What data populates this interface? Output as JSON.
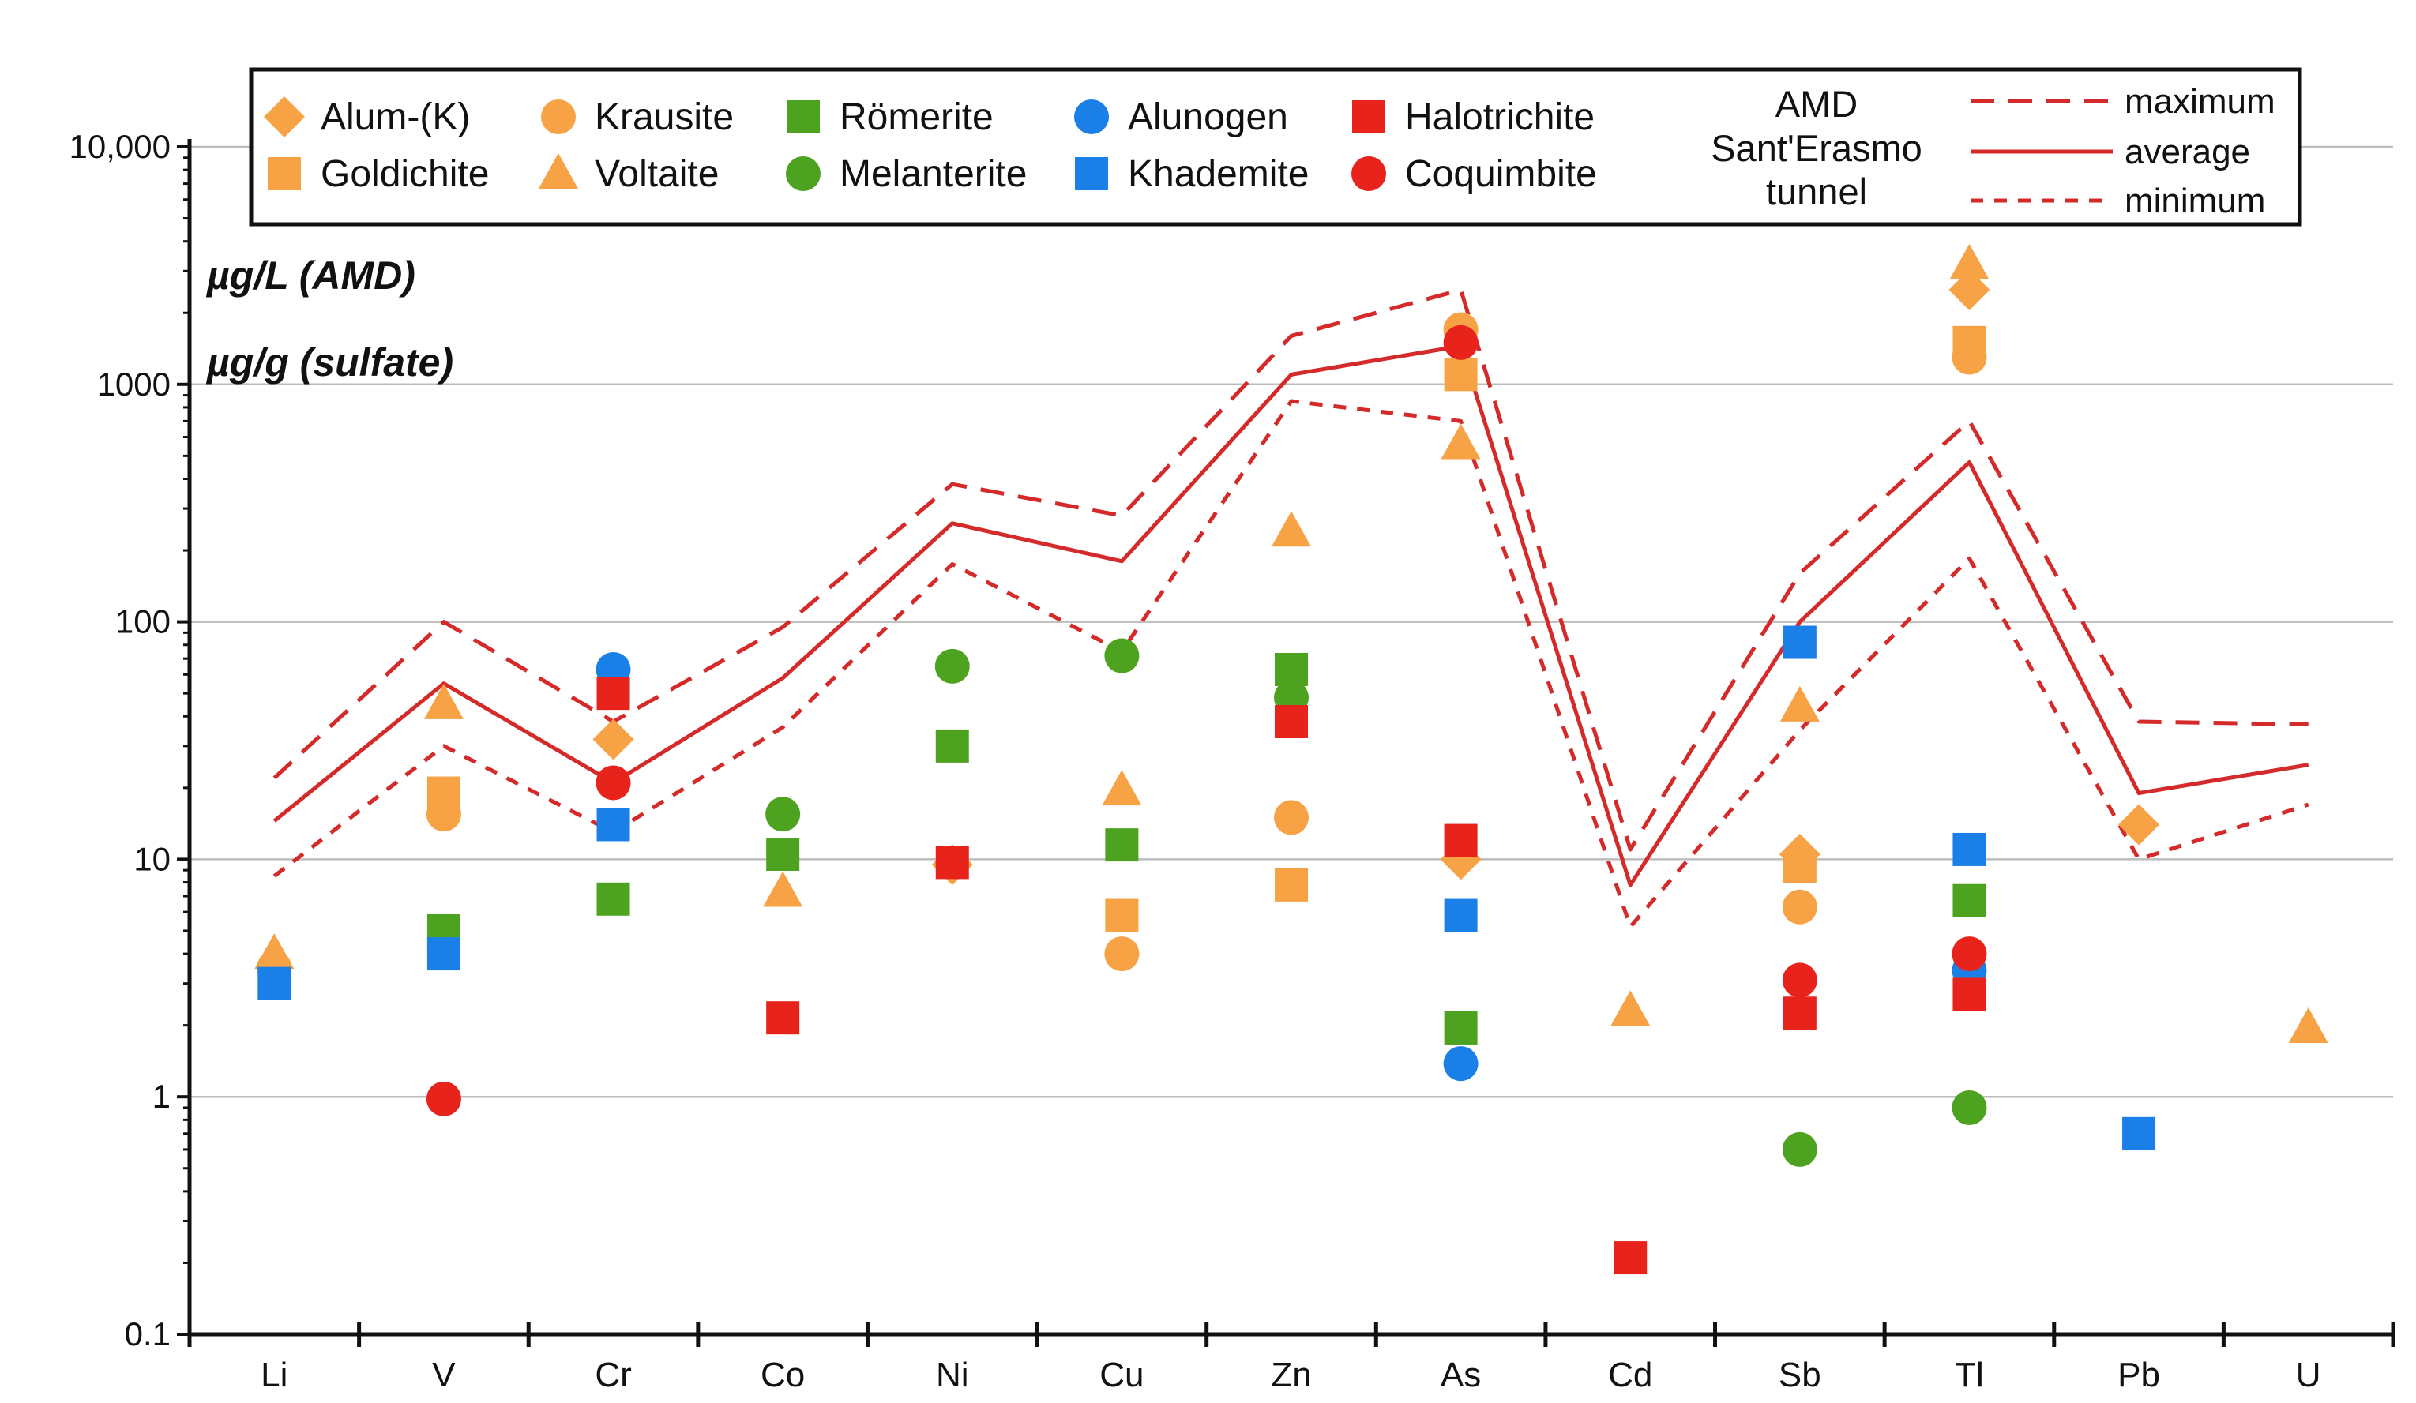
{
  "chart_data": {
    "type": "scatter",
    "title": "",
    "xlabel": "",
    "ylabel": "",
    "yscale": "log",
    "ylim": [
      0.1,
      10000
    ],
    "y_ticks": [
      {
        "value": 0.1,
        "label": "0.1"
      },
      {
        "value": 1,
        "label": "1"
      },
      {
        "value": 10,
        "label": "10"
      },
      {
        "value": 100,
        "label": "100"
      },
      {
        "value": 1000,
        "label": "1000"
      },
      {
        "value": 10000,
        "label": "10,000"
      }
    ],
    "unit_labels": [
      "µg/L (AMD)",
      "µg/g (sulfate)"
    ],
    "categories": [
      "Li",
      "V",
      "Cr",
      "Co",
      "Ni",
      "Cu",
      "Zn",
      "As",
      "Cd",
      "Sb",
      "Tl",
      "Pb",
      "U"
    ],
    "series": [
      {
        "name": "Alum-(K)",
        "color": "#f6a245",
        "marker": "diamond",
        "points": [
          {
            "x": "Cr",
            "y": 32
          },
          {
            "x": "Ni",
            "y": 9.5
          },
          {
            "x": "As",
            "y": 10
          },
          {
            "x": "Sb",
            "y": 10.5
          },
          {
            "x": "Tl",
            "y": 2500
          },
          {
            "x": "Pb",
            "y": 14
          }
        ]
      },
      {
        "name": "Goldichite",
        "color": "#f6a245",
        "marker": "square",
        "points": [
          {
            "x": "V",
            "y": 19
          },
          {
            "x": "Cu",
            "y": 5.8
          },
          {
            "x": "Zn",
            "y": 7.8
          },
          {
            "x": "As",
            "y": 1100
          },
          {
            "x": "Sb",
            "y": 9.3
          },
          {
            "x": "Tl",
            "y": 1500
          }
        ]
      },
      {
        "name": "Krausite",
        "color": "#f6a245",
        "marker": "circle",
        "points": [
          {
            "x": "Li",
            "y": 3.5
          },
          {
            "x": "V",
            "y": 15.5
          },
          {
            "x": "Cu",
            "y": 4.0
          },
          {
            "x": "Zn",
            "y": 15
          },
          {
            "x": "As",
            "y": 1700
          },
          {
            "x": "Sb",
            "y": 6.3
          },
          {
            "x": "Tl",
            "y": 1300
          }
        ]
      },
      {
        "name": "Voltaite",
        "color": "#f6a245",
        "marker": "triangle",
        "points": [
          {
            "x": "Li",
            "y": 4.0
          },
          {
            "x": "V",
            "y": 45
          },
          {
            "x": "Co",
            "y": 7.3
          },
          {
            "x": "Cu",
            "y": 19.5
          },
          {
            "x": "Zn",
            "y": 240
          },
          {
            "x": "As",
            "y": 560
          },
          {
            "x": "Cd",
            "y": 2.3
          },
          {
            "x": "Sb",
            "y": 44
          },
          {
            "x": "Tl",
            "y": 3200
          },
          {
            "x": "U",
            "y": 1.95
          }
        ]
      },
      {
        "name": "Römerite",
        "color": "#4da320",
        "marker": "square",
        "points": [
          {
            "x": "V",
            "y": 5.0
          },
          {
            "x": "Cr",
            "y": 6.8
          },
          {
            "x": "Co",
            "y": 10.5
          },
          {
            "x": "Ni",
            "y": 30
          },
          {
            "x": "Cu",
            "y": 11.5
          },
          {
            "x": "Zn",
            "y": 63
          },
          {
            "x": "As",
            "y": 1.95
          },
          {
            "x": "Tl",
            "y": 6.7
          }
        ]
      },
      {
        "name": "Melanterite",
        "color": "#4da320",
        "marker": "circle",
        "points": [
          {
            "x": "Co",
            "y": 15.5
          },
          {
            "x": "Ni",
            "y": 65
          },
          {
            "x": "Cu",
            "y": 72
          },
          {
            "x": "Zn",
            "y": 48
          },
          {
            "x": "Sb",
            "y": 0.6
          },
          {
            "x": "Tl",
            "y": 0.9
          }
        ]
      },
      {
        "name": "Alunogen",
        "color": "#1b7fe8",
        "marker": "circle",
        "points": [
          {
            "x": "Cr",
            "y": 63
          },
          {
            "x": "As",
            "y": 1.38
          },
          {
            "x": "Tl",
            "y": 3.4
          }
        ]
      },
      {
        "name": "Khademite",
        "color": "#1b7fe8",
        "marker": "square",
        "points": [
          {
            "x": "Li",
            "y": 3.0
          },
          {
            "x": "V",
            "y": 4.0
          },
          {
            "x": "Cr",
            "y": 14
          },
          {
            "x": "As",
            "y": 5.8
          },
          {
            "x": "Sb",
            "y": 82
          },
          {
            "x": "Tl",
            "y": 11
          },
          {
            "x": "Pb",
            "y": 0.7
          }
        ]
      },
      {
        "name": "Halotrichite",
        "color": "#e8231b",
        "marker": "square",
        "points": [
          {
            "x": "Cr",
            "y": 50
          },
          {
            "x": "Co",
            "y": 2.15
          },
          {
            "x": "Ni",
            "y": 9.7
          },
          {
            "x": "Zn",
            "y": 38
          },
          {
            "x": "As",
            "y": 12
          },
          {
            "x": "Cd",
            "y": 0.21
          },
          {
            "x": "Sb",
            "y": 2.25
          },
          {
            "x": "Tl",
            "y": 2.7
          }
        ]
      },
      {
        "name": "Coquimbite",
        "color": "#e8231b",
        "marker": "circle",
        "points": [
          {
            "x": "V",
            "y": 0.98
          },
          {
            "x": "Cr",
            "y": 21
          },
          {
            "x": "As",
            "y": 1500
          },
          {
            "x": "Sb",
            "y": 3.1
          },
          {
            "x": "Tl",
            "y": 4.0
          }
        ]
      }
    ],
    "lines": [
      {
        "name": "maximum",
        "color": "#d42a2a",
        "style": "dashed-long",
        "values": [
          22,
          100,
          38,
          95,
          380,
          280,
          1600,
          2500,
          11,
          160,
          700,
          38,
          37
        ]
      },
      {
        "name": "average",
        "color": "#d42a2a",
        "style": "solid",
        "values": [
          14.5,
          55,
          21,
          58,
          260,
          180,
          1100,
          1450,
          7.8,
          100,
          470,
          19,
          25
        ]
      },
      {
        "name": "minimum",
        "color": "#d42a2a",
        "style": "dashed-short",
        "values": [
          8.5,
          30,
          13,
          36,
          175,
          75,
          850,
          700,
          5.2,
          35,
          185,
          10,
          17
        ]
      }
    ],
    "legend": {
      "placement": "top",
      "line_group_title": [
        "AMD",
        "Sant'Erasmo",
        "tunnel"
      ]
    }
  }
}
